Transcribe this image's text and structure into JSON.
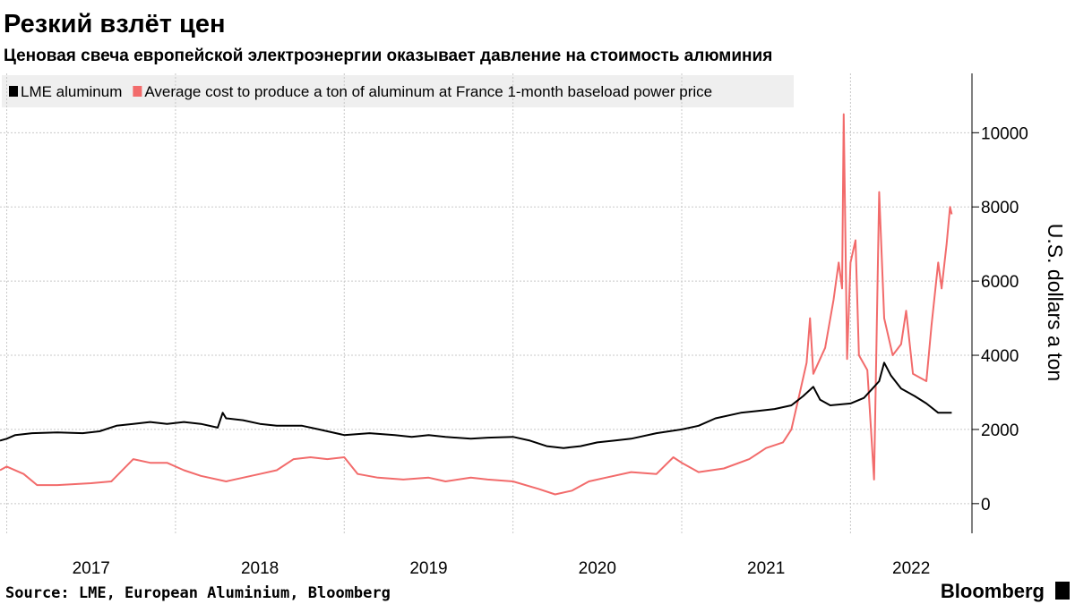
{
  "chart_data": {
    "type": "line",
    "title": "Резкий взлёт цен",
    "subtitle": "Ценовая свеча европейской электроэнергии оказывает давление на стоимость алюминия",
    "y_label": "U.S. dollars a ton",
    "source": "Source: LME, European Aluminium, Bloomberg",
    "brand": "Bloomberg",
    "xlim": [
      2016.96,
      2022.72
    ],
    "xticks": [
      2017,
      2018,
      2019,
      2020,
      2021,
      2022
    ],
    "ylim": [
      -800,
      11600
    ],
    "yticks": [
      0,
      2000,
      4000,
      6000,
      8000,
      10000
    ],
    "grid": true,
    "legend": "top-left",
    "series": [
      {
        "name": "LME aluminum",
        "color": "#000000",
        "x": [
          2016.96,
          2017.0,
          2017.05,
          2017.15,
          2017.3,
          2017.45,
          2017.55,
          2017.65,
          2017.75,
          2017.85,
          2017.95,
          2018.05,
          2018.15,
          2018.25,
          2018.28,
          2018.3,
          2018.4,
          2018.5,
          2018.6,
          2018.75,
          2018.85,
          2019.0,
          2019.15,
          2019.3,
          2019.4,
          2019.5,
          2019.6,
          2019.75,
          2019.85,
          2020.0,
          2020.1,
          2020.2,
          2020.3,
          2020.4,
          2020.5,
          2020.6,
          2020.7,
          2020.85,
          2021.0,
          2021.1,
          2021.2,
          2021.35,
          2021.45,
          2021.55,
          2021.65,
          2021.72,
          2021.78,
          2021.82,
          2021.88,
          2022.0,
          2022.08,
          2022.14,
          2022.17,
          2022.2,
          2022.24,
          2022.3,
          2022.38,
          2022.45,
          2022.52,
          2022.6
        ],
        "values": [
          1700,
          1750,
          1850,
          1900,
          1920,
          1900,
          1950,
          2100,
          2150,
          2200,
          2150,
          2200,
          2150,
          2050,
          2450,
          2300,
          2250,
          2150,
          2100,
          2100,
          2000,
          1850,
          1900,
          1850,
          1800,
          1850,
          1800,
          1750,
          1780,
          1800,
          1700,
          1550,
          1500,
          1550,
          1650,
          1700,
          1750,
          1900,
          2000,
          2100,
          2300,
          2450,
          2500,
          2550,
          2650,
          2900,
          3150,
          2800,
          2650,
          2700,
          2850,
          3150,
          3300,
          3800,
          3450,
          3100,
          2900,
          2700,
          2450,
          2450
        ]
      },
      {
        "name": "Average cost to produce a ton of aluminum at France 1-month baseload power price",
        "color": "#f26b6b",
        "x": [
          2016.96,
          2017.0,
          2017.1,
          2017.18,
          2017.3,
          2017.5,
          2017.62,
          2017.75,
          2017.85,
          2017.95,
          2018.05,
          2018.15,
          2018.3,
          2018.4,
          2018.5,
          2018.6,
          2018.7,
          2018.8,
          2018.9,
          2019.0,
          2019.08,
          2019.2,
          2019.35,
          2019.5,
          2019.6,
          2019.75,
          2019.85,
          2020.0,
          2020.15,
          2020.25,
          2020.35,
          2020.45,
          2020.55,
          2020.7,
          2020.85,
          2020.95,
          2021.0,
          2021.1,
          2021.25,
          2021.4,
          2021.5,
          2021.6,
          2021.65,
          2021.7,
          2021.74,
          2021.76,
          2021.78,
          2021.85,
          2021.9,
          2021.93,
          2021.95,
          2021.96,
          2021.98,
          2022.0,
          2022.03,
          2022.05,
          2022.1,
          2022.14,
          2022.17,
          2022.2,
          2022.25,
          2022.3,
          2022.33,
          2022.37,
          2022.45,
          2022.48,
          2022.52,
          2022.54,
          2022.57,
          2022.59,
          2022.6
        ],
        "values": [
          900,
          1000,
          800,
          500,
          500,
          550,
          600,
          1200,
          1100,
          1100,
          900,
          750,
          600,
          700,
          800,
          900,
          1200,
          1250,
          1200,
          1250,
          800,
          700,
          650,
          700,
          600,
          700,
          650,
          600,
          400,
          250,
          350,
          600,
          700,
          850,
          800,
          1250,
          1100,
          850,
          950,
          1200,
          1500,
          1650,
          2000,
          3000,
          3800,
          5000,
          3500,
          4200,
          5500,
          6500,
          5800,
          10500,
          3900,
          6500,
          7100,
          4000,
          3600,
          650,
          8400,
          5000,
          4000,
          4300,
          5200,
          3500,
          3300,
          4800,
          6500,
          5800,
          7000,
          8000,
          7800
        ]
      }
    ]
  }
}
